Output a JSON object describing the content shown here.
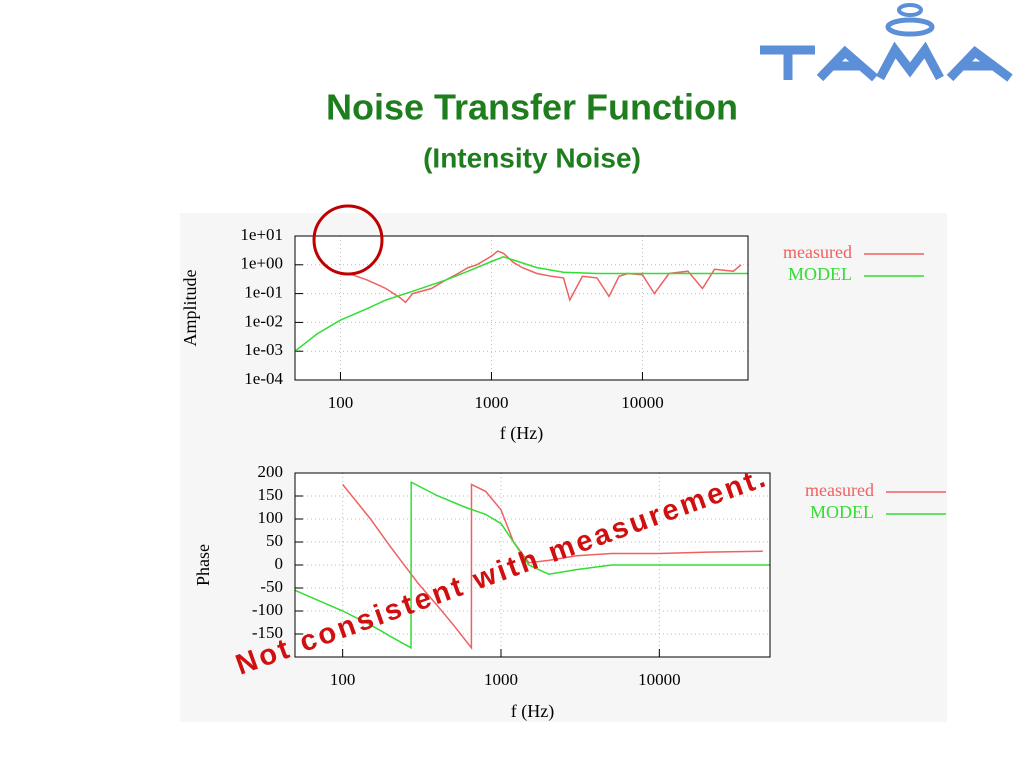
{
  "header": {
    "title": "Noise Transfer Function",
    "subtitle": "(Intensity Noise)"
  },
  "annotation": "Not consistent with measurement.",
  "chart_data": [
    {
      "type": "line",
      "x_label": "f (Hz)",
      "y_label": "Amplitude",
      "xlog": true,
      "ylog": true,
      "grid": true,
      "legend": "outside-right",
      "xlim": [
        50,
        50000
      ],
      "xticks": [
        100,
        1000,
        10000
      ],
      "ylim": [
        0.0001,
        10
      ],
      "yticks": [
        {
          "value": 10,
          "label": "1e+01"
        },
        {
          "value": 1,
          "label": "1e+00"
        },
        {
          "value": 0.1,
          "label": "1e-01"
        },
        {
          "value": 0.01,
          "label": "1e-02"
        },
        {
          "value": 0.001,
          "label": "1e-03"
        },
        {
          "value": 0.0001,
          "label": "1e-04"
        }
      ],
      "series": [
        {
          "name": "measured",
          "color": "#f06060",
          "x": [
            100,
            120,
            150,
            200,
            250,
            270,
            300,
            400,
            500,
            600,
            700,
            800,
            1000,
            1100,
            1200,
            1400,
            1600,
            2000,
            2500,
            3000,
            3300,
            4000,
            5000,
            6000,
            7000,
            8000,
            10000,
            12000,
            15000,
            20000,
            25000,
            30000,
            40000,
            45000
          ],
          "values": [
            0.5,
            0.45,
            0.3,
            0.15,
            0.07,
            0.05,
            0.1,
            0.15,
            0.3,
            0.5,
            0.8,
            1.0,
            2,
            3,
            2.5,
            1.2,
            0.8,
            0.5,
            0.4,
            0.35,
            0.06,
            0.4,
            0.35,
            0.08,
            0.4,
            0.5,
            0.45,
            0.1,
            0.5,
            0.6,
            0.15,
            0.7,
            0.6,
            1.0
          ]
        },
        {
          "name": "MODEL",
          "color": "#33dd33",
          "x": [
            50,
            70,
            100,
            150,
            200,
            300,
            500,
            700,
            1000,
            1200,
            1500,
            2000,
            3000,
            5000,
            10000,
            20000,
            50000
          ],
          "values": [
            0.001,
            0.004,
            0.012,
            0.03,
            0.06,
            0.12,
            0.3,
            0.6,
            1.3,
            1.9,
            1.3,
            0.8,
            0.55,
            0.5,
            0.5,
            0.5,
            0.5
          ]
        }
      ]
    },
    {
      "type": "line",
      "x_label": "f (Hz)",
      "y_label": "Phase",
      "xlog": true,
      "ylog": false,
      "grid": true,
      "legend": "outside-right",
      "xlim": [
        50,
        50000
      ],
      "xticks": [
        100,
        1000,
        10000
      ],
      "ylim": [
        -200,
        200
      ],
      "yticks": [
        200,
        150,
        100,
        50,
        0,
        -50,
        -100,
        -150
      ],
      "series": [
        {
          "name": "measured",
          "color": "#f06060",
          "x": [
            100,
            150,
            200,
            300,
            400,
            500,
            650,
            651,
            800,
            1000,
            1200,
            1500,
            2000,
            3000,
            5000,
            10000,
            20000,
            45000
          ],
          "values": [
            175,
            100,
            40,
            -40,
            -90,
            -130,
            -180,
            175,
            160,
            120,
            50,
            5,
            10,
            20,
            25,
            25,
            28,
            30
          ]
        },
        {
          "name": "MODEL",
          "color": "#33dd33",
          "x": [
            50,
            100,
            150,
            200,
            270,
            271,
            400,
            600,
            800,
            1000,
            1200,
            1500,
            2000,
            3000,
            5000,
            10000,
            50000
          ],
          "values": [
            -55,
            -100,
            -130,
            -155,
            -180,
            180,
            150,
            125,
            110,
            90,
            50,
            0,
            -20,
            -10,
            0,
            0,
            0
          ]
        }
      ]
    }
  ]
}
